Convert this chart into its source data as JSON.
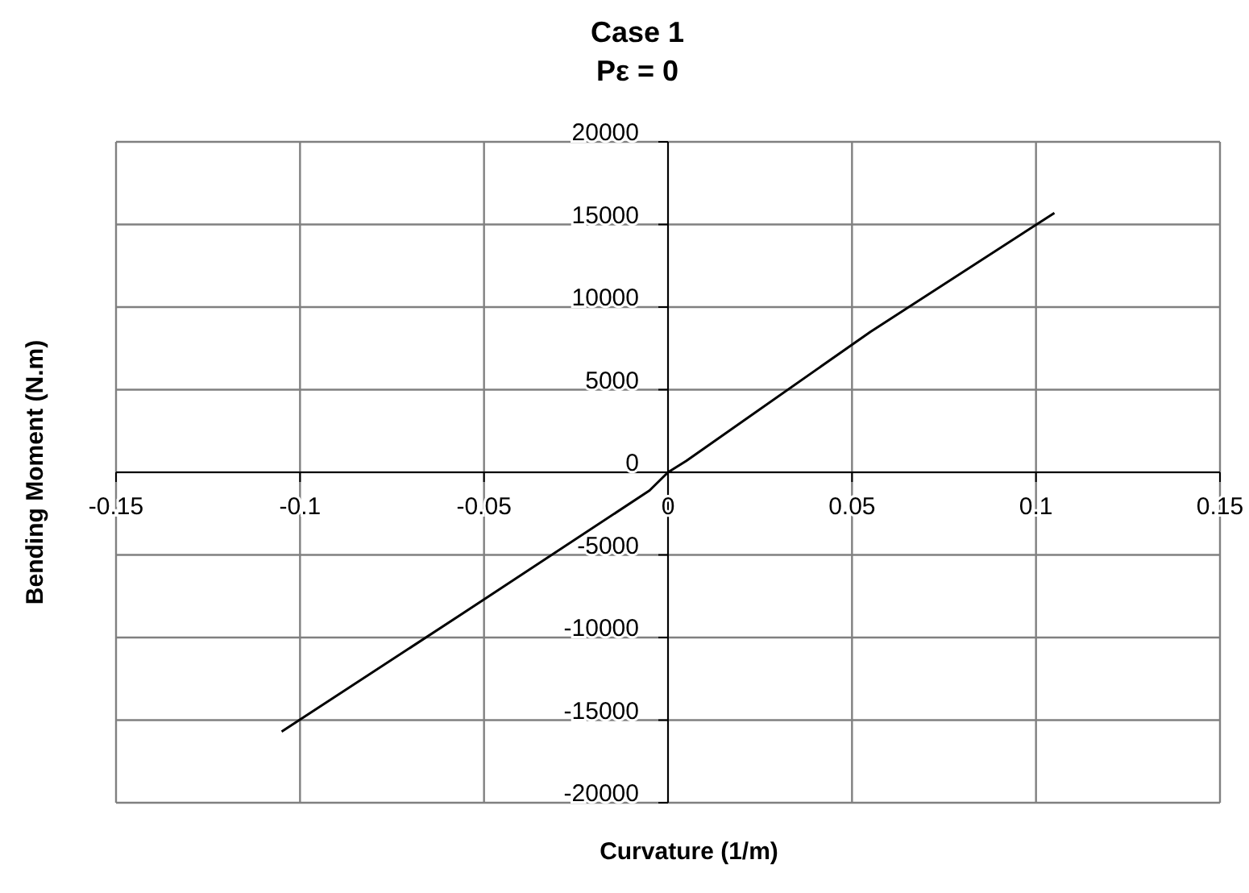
{
  "chart_data": {
    "type": "line",
    "title": "Case 1",
    "subtitle": "Pε = 0",
    "xlabel": "Curvature (1/m)",
    "ylabel": "Bending Moment (N.m)",
    "x": [
      -0.105,
      -0.05,
      -0.005,
      0,
      0.005,
      0.055,
      0.105
    ],
    "series": [
      {
        "color": "#000000",
        "values": [
          -15700,
          -7700,
          -1100,
          0,
          700,
          8500,
          15700
        ]
      }
    ],
    "xlim": [
      -0.15,
      0.15
    ],
    "xticks": [
      -0.15,
      -0.1,
      -0.05,
      0,
      0.05,
      0.1,
      0.15
    ],
    "ylim": [
      -20000,
      20000
    ],
    "yticks": [
      -20000,
      -15000,
      -10000,
      -5000,
      0,
      5000,
      10000,
      15000,
      20000
    ],
    "grid": true,
    "legend": false,
    "marker": "none",
    "line_style": "solid"
  }
}
